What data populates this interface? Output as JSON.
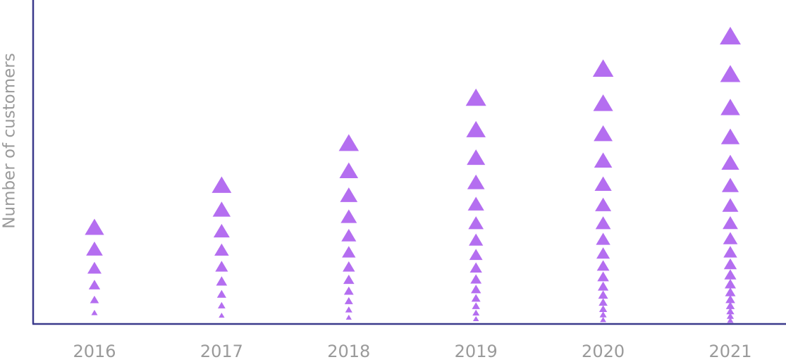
{
  "chart_data": {
    "type": "triangle-column",
    "y_label": "Number of customers",
    "categories": [
      "2016",
      "2017",
      "2018",
      "2019",
      "2020",
      "2021"
    ],
    "values": [
      30,
      43,
      56,
      70,
      79,
      89
    ],
    "color": "#b46ef0",
    "ylim": [
      0,
      100
    ]
  }
}
